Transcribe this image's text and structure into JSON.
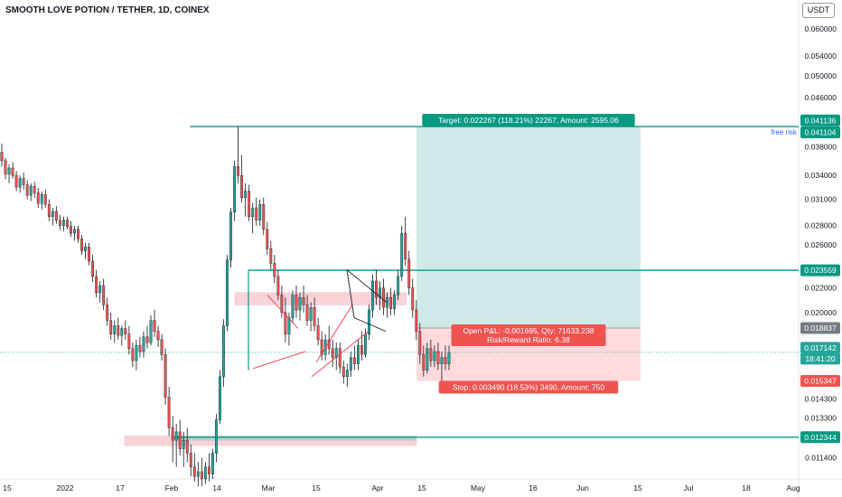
{
  "header": {
    "title": "SMOOTH LOVE POTION / TETHER, 1D, COINEX",
    "currency": "USDT"
  },
  "colors": {
    "up": "#26a69a",
    "down": "#ef5350",
    "candle_up_body": "#26a69a",
    "candle_down_body": "#ef5350",
    "target_zone": "#b2dfdb",
    "stop_zone": "#ffcdd2",
    "level_line": "#089981",
    "pink_zone": "#f7b7bf",
    "trendline": "#f23645",
    "flag": "#131722"
  },
  "chart_data": {
    "type": "candlestick",
    "title": "SMOOTH LOVE POTION / TETHER, 1D, COINEX",
    "x_tick_labels": [
      "15",
      "2022",
      "17",
      "Feb",
      "14",
      "Mar",
      "15",
      "Apr",
      "15",
      "May",
      "16",
      "Jun",
      "15",
      "Jul",
      "18",
      "Aug"
    ],
    "y_tick_labels": [
      "0.060000",
      "0.054000",
      "0.050000",
      "0.046000",
      "0.038000",
      "0.034000",
      "0.031000",
      "0.028000",
      "0.026000",
      "0.022000",
      "0.020000",
      "0.014300",
      "0.013300",
      "0.011400"
    ],
    "y_scale": "log",
    "ylim": [
      0.0105,
      0.063
    ],
    "price_line": {
      "value": 0.017142,
      "label": "0.017142",
      "countdown": "18:41:20"
    },
    "levels": [
      {
        "name": "target",
        "value": 0.041104,
        "label": "0.041104"
      },
      {
        "name": "target-alt",
        "value": 0.041136,
        "label": "0.041136"
      },
      {
        "name": "resistance",
        "value": 0.023559,
        "label": "0.023559"
      },
      {
        "name": "entry",
        "value": 0.018837,
        "label": "0.018837"
      },
      {
        "name": "stop",
        "value": 0.015347,
        "label": "0.015347"
      },
      {
        "name": "support",
        "value": 0.012344,
        "label": "0.012344"
      }
    ],
    "position": {
      "entry": 0.018837,
      "target": 0.041104,
      "stop": 0.015347,
      "target_label": "Target: 0.022267 (118.21%) 22267, Amount: 2595.06",
      "stop_label": "Stop: 0.003490 (18.53%) 3490, Amount: 750",
      "pnl_label": "Open P&L: -0.001695, Qty: 71633.238",
      "rr_label": "Risk/Reward Ratio: 6.38"
    },
    "annotations": [
      "free risk"
    ],
    "candles": [
      [
        0.0372,
        0.0385,
        0.0352,
        0.036
      ],
      [
        0.036,
        0.0364,
        0.0335,
        0.0342
      ],
      [
        0.0342,
        0.0355,
        0.033,
        0.035
      ],
      [
        0.035,
        0.0358,
        0.0336,
        0.034
      ],
      [
        0.034,
        0.0346,
        0.032,
        0.0325
      ],
      [
        0.0325,
        0.034,
        0.0318,
        0.0336
      ],
      [
        0.0336,
        0.0344,
        0.0322,
        0.0328
      ],
      [
        0.0328,
        0.0334,
        0.031,
        0.0315
      ],
      [
        0.0315,
        0.033,
        0.0308,
        0.0326
      ],
      [
        0.0326,
        0.0332,
        0.0312,
        0.0318
      ],
      [
        0.0318,
        0.0324,
        0.03,
        0.0305
      ],
      [
        0.0305,
        0.032,
        0.0298,
        0.0316
      ],
      [
        0.0316,
        0.0322,
        0.03,
        0.0304
      ],
      [
        0.0304,
        0.031,
        0.0285,
        0.029
      ],
      [
        0.029,
        0.03,
        0.028,
        0.0296
      ],
      [
        0.0296,
        0.0302,
        0.0282,
        0.0286
      ],
      [
        0.0286,
        0.0292,
        0.0275,
        0.028
      ],
      [
        0.028,
        0.029,
        0.0274,
        0.0286
      ],
      [
        0.0286,
        0.029,
        0.0276,
        0.0279
      ],
      [
        0.0279,
        0.0285,
        0.0268,
        0.0272
      ],
      [
        0.0272,
        0.028,
        0.0264,
        0.0276
      ],
      [
        0.0276,
        0.028,
        0.0262,
        0.0266
      ],
      [
        0.0266,
        0.027,
        0.025,
        0.0254
      ],
      [
        0.0254,
        0.0262,
        0.0246,
        0.0258
      ],
      [
        0.0258,
        0.0262,
        0.024,
        0.0244
      ],
      [
        0.0244,
        0.025,
        0.0225,
        0.023
      ],
      [
        0.023,
        0.0236,
        0.0212,
        0.0216
      ],
      [
        0.0216,
        0.0226,
        0.0208,
        0.0222
      ],
      [
        0.0222,
        0.0228,
        0.0202,
        0.0206
      ],
      [
        0.0206,
        0.0212,
        0.019,
        0.0194
      ],
      [
        0.0194,
        0.02,
        0.018,
        0.0184
      ],
      [
        0.0184,
        0.0194,
        0.0178,
        0.019
      ],
      [
        0.019,
        0.0196,
        0.018,
        0.0183
      ],
      [
        0.0183,
        0.019,
        0.0176,
        0.0188
      ],
      [
        0.0188,
        0.0194,
        0.018,
        0.0184
      ],
      [
        0.0184,
        0.019,
        0.017,
        0.0174
      ],
      [
        0.0174,
        0.0178,
        0.0162,
        0.0166
      ],
      [
        0.0166,
        0.018,
        0.016,
        0.0176
      ],
      [
        0.0176,
        0.0182,
        0.0168,
        0.0172
      ],
      [
        0.0172,
        0.0186,
        0.0168,
        0.0182
      ],
      [
        0.0182,
        0.019,
        0.0174,
        0.0178
      ],
      [
        0.0178,
        0.0198,
        0.0176,
        0.0194
      ],
      [
        0.0194,
        0.0202,
        0.0182,
        0.0186
      ],
      [
        0.0186,
        0.019,
        0.0175,
        0.018
      ],
      [
        0.018,
        0.0184,
        0.0166,
        0.017
      ],
      [
        0.017,
        0.0174,
        0.014,
        0.0144
      ],
      [
        0.0144,
        0.015,
        0.0124,
        0.0128
      ],
      [
        0.0128,
        0.0134,
        0.0112,
        0.0122
      ],
      [
        0.0122,
        0.013,
        0.011,
        0.0126
      ],
      [
        0.0126,
        0.0132,
        0.0115,
        0.0118
      ],
      [
        0.0118,
        0.0126,
        0.011,
        0.0122
      ],
      [
        0.0122,
        0.0128,
        0.0112,
        0.0116
      ],
      [
        0.0116,
        0.012,
        0.0106,
        0.011
      ],
      [
        0.011,
        0.0116,
        0.0104,
        0.0106
      ],
      [
        0.0106,
        0.0112,
        0.0102,
        0.0108
      ],
      [
        0.0108,
        0.0114,
        0.0102,
        0.0105
      ],
      [
        0.0105,
        0.0112,
        0.0103,
        0.011
      ],
      [
        0.011,
        0.0116,
        0.0104,
        0.0107
      ],
      [
        0.0107,
        0.0118,
        0.0105,
        0.0116
      ],
      [
        0.0116,
        0.0135,
        0.0112,
        0.0132
      ],
      [
        0.0132,
        0.016,
        0.013,
        0.0156
      ],
      [
        0.0156,
        0.0195,
        0.015,
        0.019
      ],
      [
        0.019,
        0.025,
        0.0186,
        0.0245
      ],
      [
        0.0245,
        0.03,
        0.0238,
        0.0295
      ],
      [
        0.0295,
        0.036,
        0.0285,
        0.0352
      ],
      [
        0.0352,
        0.0412,
        0.033,
        0.034
      ],
      [
        0.034,
        0.0368,
        0.0306,
        0.0312
      ],
      [
        0.0312,
        0.033,
        0.029,
        0.032
      ],
      [
        0.032,
        0.0328,
        0.0285,
        0.029
      ],
      [
        0.029,
        0.0306,
        0.0272,
        0.03
      ],
      [
        0.03,
        0.0312,
        0.028,
        0.0286
      ],
      [
        0.0286,
        0.031,
        0.028,
        0.0304
      ],
      [
        0.0304,
        0.0312,
        0.027,
        0.0276
      ],
      [
        0.0276,
        0.0284,
        0.025,
        0.0256
      ],
      [
        0.0256,
        0.0264,
        0.0236,
        0.0242
      ],
      [
        0.0242,
        0.025,
        0.0224,
        0.023
      ],
      [
        0.023,
        0.0236,
        0.021,
        0.0214
      ],
      [
        0.0214,
        0.0222,
        0.0196,
        0.02
      ],
      [
        0.02,
        0.0212,
        0.0178,
        0.0184
      ],
      [
        0.0184,
        0.02,
        0.0176,
        0.0196
      ],
      [
        0.0196,
        0.0218,
        0.0192,
        0.0214
      ],
      [
        0.0214,
        0.0222,
        0.0196,
        0.0202
      ],
      [
        0.0202,
        0.0216,
        0.0194,
        0.0212
      ],
      [
        0.0212,
        0.0222,
        0.02,
        0.0206
      ],
      [
        0.0206,
        0.0214,
        0.019,
        0.0194
      ],
      [
        0.0194,
        0.0208,
        0.0186,
        0.0204
      ],
      [
        0.0204,
        0.0212,
        0.0186,
        0.019
      ],
      [
        0.019,
        0.0196,
        0.0176,
        0.018
      ],
      [
        0.018,
        0.0186,
        0.0166,
        0.017
      ],
      [
        0.017,
        0.0184,
        0.0166,
        0.018
      ],
      [
        0.018,
        0.019,
        0.017,
        0.0174
      ],
      [
        0.0174,
        0.018,
        0.0162,
        0.0168
      ],
      [
        0.0168,
        0.0178,
        0.016,
        0.0174
      ],
      [
        0.0174,
        0.0178,
        0.0158,
        0.0162
      ],
      [
        0.0162,
        0.0166,
        0.0152,
        0.0156
      ],
      [
        0.0156,
        0.0164,
        0.015,
        0.016
      ],
      [
        0.016,
        0.0172,
        0.0156,
        0.0168
      ],
      [
        0.0168,
        0.0176,
        0.016,
        0.0164
      ],
      [
        0.0164,
        0.018,
        0.016,
        0.0176
      ],
      [
        0.0176,
        0.0186,
        0.0166,
        0.017
      ],
      [
        0.017,
        0.0188,
        0.0168,
        0.0184
      ],
      [
        0.0184,
        0.0206,
        0.018,
        0.0202
      ],
      [
        0.0202,
        0.0232,
        0.0196,
        0.0226
      ],
      [
        0.0226,
        0.0236,
        0.0206,
        0.0212
      ],
      [
        0.0212,
        0.0226,
        0.0202,
        0.022
      ],
      [
        0.022,
        0.0228,
        0.0198,
        0.0204
      ],
      [
        0.0204,
        0.0216,
        0.0196,
        0.0212
      ],
      [
        0.0212,
        0.022,
        0.0198,
        0.0203
      ],
      [
        0.0203,
        0.0218,
        0.0198,
        0.0214
      ],
      [
        0.0214,
        0.0236,
        0.021,
        0.023
      ],
      [
        0.023,
        0.028,
        0.0226,
        0.0272
      ],
      [
        0.0272,
        0.029,
        0.024,
        0.0246
      ],
      [
        0.0246,
        0.0254,
        0.0214,
        0.022
      ],
      [
        0.022,
        0.0228,
        0.0196,
        0.0202
      ],
      [
        0.0202,
        0.021,
        0.018,
        0.0186
      ],
      [
        0.0186,
        0.0192,
        0.0164,
        0.017
      ],
      [
        0.017,
        0.0176,
        0.0156,
        0.016
      ],
      [
        0.016,
        0.0178,
        0.0158,
        0.0174
      ],
      [
        0.0174,
        0.018,
        0.0162,
        0.0166
      ],
      [
        0.0166,
        0.0176,
        0.0162,
        0.0172
      ],
      [
        0.0172,
        0.0178,
        0.016,
        0.0164
      ],
      [
        0.0164,
        0.0172,
        0.015,
        0.0168
      ],
      [
        0.0168,
        0.0176,
        0.016,
        0.0164
      ],
      [
        0.0164,
        0.0176,
        0.016,
        0.0171
      ]
    ]
  }
}
